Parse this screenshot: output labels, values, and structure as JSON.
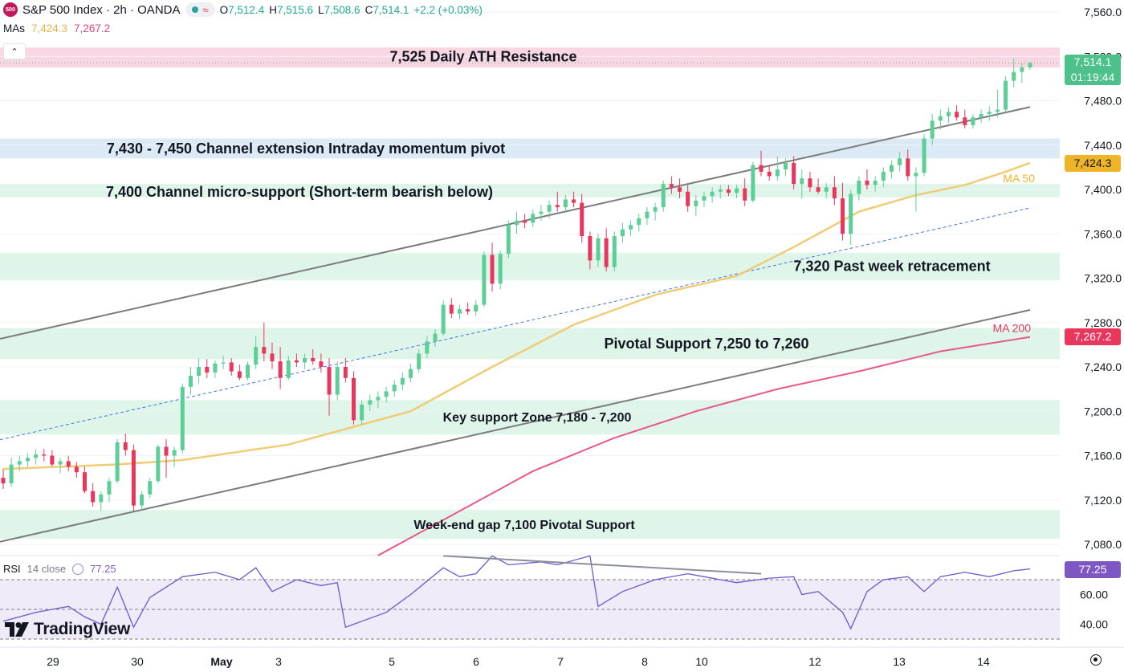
{
  "header": {
    "symbol_badge": "500",
    "title": "S&P 500 Index · 2h · OANDA",
    "ohlc": [
      {
        "key": "O",
        "value": "7,512.4"
      },
      {
        "key": "H",
        "value": "7,515.6"
      },
      {
        "key": "L",
        "value": "7,508.6"
      },
      {
        "key": "C",
        "value": "7,514.1"
      }
    ],
    "change": "+2.2 (+0.03%)",
    "mas_label": "MAs",
    "ma50_value": "7,424.3",
    "ma200_value": "7,267.2",
    "collapse_icon": "chevron-up-icon"
  },
  "price_tags": {
    "last_price": "7,514.1",
    "countdown": "01:19:44",
    "ma50": "7,424.3",
    "ma200": "7,267.2",
    "rsi": "77.25"
  },
  "rsi": {
    "label": "RSI",
    "params": "14 close",
    "value": "77.25"
  },
  "logo": {
    "text": "TradingView",
    "icon": "tradingview-logo-icon"
  },
  "settings_icon": "gear-icon",
  "colors": {
    "up": "#5ccf96",
    "down": "#e8365d",
    "ma50": "#f0cc74",
    "ma200": "#e8598a",
    "channel": "#7c7c7c",
    "midline": "#3f78e0",
    "zone_green": "#dff5e9",
    "zone_red": "#f9d6e1",
    "zone_blue": "#dbeaf4",
    "rsi_line": "#6a5acd",
    "rsi_fill": "#efebf8"
  },
  "chart_data": {
    "type": "candlestick",
    "title": "S&P 500 Index · 2h · OANDA",
    "y_axis": {
      "ticks": [
        "7,560.0",
        "7,520.0",
        "7,480.0",
        "7,440.0",
        "7,400.0",
        "7,360.0",
        "7,320.0",
        "7,280.0",
        "7,240.0",
        "7,200.0",
        "7,160.0",
        "7,120.0",
        "7,080.0"
      ],
      "ylim": [
        7065,
        7565
      ]
    },
    "x_axis": {
      "ticks": [
        "29",
        "30",
        "May",
        "3",
        "5",
        "6",
        "7",
        "8",
        "10",
        "12",
        "13",
        "14"
      ]
    },
    "zones": [
      {
        "label": "7,525 Daily ATH Resistance",
        "from": 7510,
        "to": 7528,
        "color": "red"
      },
      {
        "label": "7,430 - 7,450 Channel extension Intraday momentum pivot",
        "from": 7428,
        "to": 7446,
        "color": "blue"
      },
      {
        "label": "7,400 Channel micro-support (Short-term bearish below)",
        "from": 7393,
        "to": 7405,
        "color": "green"
      },
      {
        "label": "7,320 Past week retracement",
        "from": 7318,
        "to": 7343,
        "color": "green"
      },
      {
        "label": "Pivotal Support 7,250 to 7,260",
        "from": 7247,
        "to": 7275,
        "color": "green"
      },
      {
        "label": "Key support Zone 7,180 - 7,200",
        "from": 7179,
        "to": 7210,
        "color": "green"
      },
      {
        "label": "Week-end gap 7,100 Pivotal Support",
        "from": 7085,
        "to": 7111,
        "color": "green"
      }
    ],
    "channel_lines": [
      {
        "name": "upper",
        "points": [
          [
            0,
            7266
          ],
          [
            130,
            7481
          ]
        ]
      },
      {
        "name": "lower",
        "points": [
          [
            0,
            7083
          ],
          [
            130,
            7298
          ]
        ]
      },
      {
        "name": "mid",
        "points": [
          [
            0,
            7175
          ],
          [
            130,
            7390
          ]
        ]
      }
    ],
    "candles_ohlc": [
      [
        7140,
        7148,
        7130,
        7135
      ],
      [
        7135,
        7158,
        7132,
        7152
      ],
      [
        7152,
        7160,
        7146,
        7155
      ],
      [
        7155,
        7162,
        7150,
        7158
      ],
      [
        7158,
        7166,
        7152,
        7161
      ],
      [
        7161,
        7166,
        7155,
        7160
      ],
      [
        7160,
        7165,
        7150,
        7152
      ],
      [
        7152,
        7158,
        7144,
        7155
      ],
      [
        7155,
        7160,
        7146,
        7150
      ],
      [
        7150,
        7154,
        7140,
        7145
      ],
      [
        7145,
        7150,
        7126,
        7128
      ],
      [
        7128,
        7135,
        7114,
        7118
      ],
      [
        7118,
        7128,
        7110,
        7125
      ],
      [
        7125,
        7140,
        7118,
        7137
      ],
      [
        7137,
        7175,
        7135,
        7172
      ],
      [
        7172,
        7180,
        7160,
        7165
      ],
      [
        7165,
        7170,
        7110,
        7115
      ],
      [
        7115,
        7128,
        7110,
        7125
      ],
      [
        7125,
        7140,
        7122,
        7137
      ],
      [
        7137,
        7170,
        7135,
        7168
      ],
      [
        7168,
        7175,
        7140,
        7160
      ],
      [
        7160,
        7168,
        7150,
        7165
      ],
      [
        7165,
        7225,
        7162,
        7222
      ],
      [
        7222,
        7240,
        7215,
        7232
      ],
      [
        7232,
        7248,
        7225,
        7240
      ],
      [
        7240,
        7247,
        7230,
        7235
      ],
      [
        7235,
        7246,
        7230,
        7243
      ],
      [
        7243,
        7250,
        7238,
        7244
      ],
      [
        7244,
        7248,
        7232,
        7236
      ],
      [
        7236,
        7242,
        7228,
        7230
      ],
      [
        7230,
        7245,
        7228,
        7242
      ],
      [
        7242,
        7268,
        7238,
        7258
      ],
      [
        7258,
        7280,
        7245,
        7252
      ],
      [
        7252,
        7262,
        7238,
        7245
      ],
      [
        7245,
        7258,
        7220,
        7230
      ],
      [
        7230,
        7250,
        7228,
        7246
      ],
      [
        7246,
        7252,
        7240,
        7244
      ],
      [
        7244,
        7252,
        7238,
        7248
      ],
      [
        7248,
        7256,
        7242,
        7245
      ],
      [
        7245,
        7252,
        7235,
        7240
      ],
      [
        7240,
        7248,
        7196,
        7215
      ],
      [
        7215,
        7245,
        7210,
        7240
      ],
      [
        7240,
        7248,
        7226,
        7230
      ],
      [
        7230,
        7236,
        7188,
        7192
      ],
      [
        7192,
        7210,
        7188,
        7206
      ],
      [
        7206,
        7215,
        7200,
        7210
      ],
      [
        7210,
        7218,
        7203,
        7213
      ],
      [
        7213,
        7222,
        7208,
        7218
      ],
      [
        7218,
        7228,
        7213,
        7224
      ],
      [
        7224,
        7235,
        7219,
        7230
      ],
      [
        7230,
        7243,
        7226,
        7238
      ],
      [
        7238,
        7256,
        7235,
        7252
      ],
      [
        7252,
        7268,
        7248,
        7263
      ],
      [
        7263,
        7274,
        7258,
        7270
      ],
      [
        7270,
        7300,
        7268,
        7296
      ],
      [
        7296,
        7302,
        7284,
        7288
      ],
      [
        7288,
        7296,
        7283,
        7292
      ],
      [
        7292,
        7298,
        7287,
        7290
      ],
      [
        7290,
        7300,
        7286,
        7296
      ],
      [
        7296,
        7344,
        7294,
        7341
      ],
      [
        7341,
        7352,
        7308,
        7315
      ],
      [
        7315,
        7345,
        7310,
        7342
      ],
      [
        7342,
        7372,
        7338,
        7368
      ],
      [
        7368,
        7380,
        7360,
        7372
      ],
      [
        7372,
        7378,
        7365,
        7370
      ],
      [
        7370,
        7382,
        7366,
        7378
      ],
      [
        7378,
        7386,
        7372,
        7380
      ],
      [
        7380,
        7390,
        7374,
        7386
      ],
      [
        7386,
        7398,
        7380,
        7384
      ],
      [
        7384,
        7395,
        7380,
        7391
      ],
      [
        7391,
        7398,
        7384,
        7388
      ],
      [
        7388,
        7396,
        7352,
        7358
      ],
      [
        7358,
        7362,
        7328,
        7336
      ],
      [
        7336,
        7360,
        7330,
        7356
      ],
      [
        7356,
        7365,
        7326,
        7330
      ],
      [
        7330,
        7362,
        7326,
        7358
      ],
      [
        7358,
        7370,
        7352,
        7364
      ],
      [
        7364,
        7372,
        7358,
        7368
      ],
      [
        7368,
        7378,
        7362,
        7374
      ],
      [
        7374,
        7384,
        7368,
        7380
      ],
      [
        7380,
        7388,
        7372,
        7384
      ],
      [
        7384,
        7408,
        7380,
        7405
      ],
      [
        7405,
        7412,
        7396,
        7402
      ],
      [
        7402,
        7410,
        7392,
        7398
      ],
      [
        7398,
        7404,
        7380,
        7385
      ],
      [
        7385,
        7395,
        7376,
        7390
      ],
      [
        7390,
        7398,
        7384,
        7394
      ],
      [
        7394,
        7402,
        7388,
        7398
      ],
      [
        7398,
        7404,
        7392,
        7400
      ],
      [
        7400,
        7404,
        7394,
        7397
      ],
      [
        7397,
        7404,
        7392,
        7401
      ],
      [
        7401,
        7410,
        7385,
        7390
      ],
      [
        7390,
        7425,
        7388,
        7422
      ],
      [
        7422,
        7435,
        7412,
        7416
      ],
      [
        7416,
        7422,
        7408,
        7412
      ],
      [
        7412,
        7430,
        7408,
        7418
      ],
      [
        7418,
        7428,
        7412,
        7424
      ],
      [
        7424,
        7430,
        7400,
        7405
      ],
      [
        7405,
        7418,
        7392,
        7410
      ],
      [
        7410,
        7416,
        7398,
        7402
      ],
      [
        7402,
        7410,
        7396,
        7398
      ],
      [
        7398,
        7406,
        7392,
        7402
      ],
      [
        7402,
        7412,
        7386,
        7392
      ],
      [
        7392,
        7406,
        7354,
        7360
      ],
      [
        7360,
        7400,
        7350,
        7396
      ],
      [
        7396,
        7412,
        7390,
        7408
      ],
      [
        7408,
        7418,
        7400,
        7404
      ],
      [
        7404,
        7412,
        7398,
        7408
      ],
      [
        7408,
        7420,
        7402,
        7416
      ],
      [
        7416,
        7426,
        7410,
        7422
      ],
      [
        7422,
        7434,
        7416,
        7428
      ],
      [
        7428,
        7436,
        7408,
        7412
      ],
      [
        7412,
        7420,
        7380,
        7415
      ],
      [
        7415,
        7450,
        7412,
        7446
      ],
      [
        7446,
        7468,
        7440,
        7462
      ],
      [
        7462,
        7472,
        7454,
        7466
      ],
      [
        7466,
        7474,
        7460,
        7470
      ],
      [
        7470,
        7476,
        7462,
        7465
      ],
      [
        7465,
        7472,
        7455,
        7458
      ],
      [
        7458,
        7468,
        7455,
        7465
      ],
      [
        7465,
        7472,
        7460,
        7468
      ],
      [
        7468,
        7475,
        7462,
        7470
      ],
      [
        7470,
        7490,
        7465,
        7472
      ],
      [
        7472,
        7502,
        7470,
        7498
      ],
      [
        7498,
        7518,
        7492,
        7506
      ],
      [
        7506,
        7514,
        7496,
        7510
      ],
      [
        7510,
        7515,
        7508,
        7514
      ]
    ],
    "ma50_points": [
      [
        0,
        7148
      ],
      [
        14,
        7152
      ],
      [
        22,
        7156
      ],
      [
        35,
        7170
      ],
      [
        50,
        7200
      ],
      [
        60,
        7240
      ],
      [
        70,
        7278
      ],
      [
        80,
        7305
      ],
      [
        90,
        7322
      ],
      [
        97,
        7348
      ],
      [
        105,
        7380
      ],
      [
        112,
        7395
      ],
      [
        118,
        7404
      ],
      [
        123,
        7416
      ],
      [
        126,
        7424
      ]
    ],
    "ma200_points": [
      [
        46,
        7070
      ],
      [
        55,
        7106
      ],
      [
        65,
        7146
      ],
      [
        75,
        7176
      ],
      [
        85,
        7200
      ],
      [
        95,
        7220
      ],
      [
        105,
        7236
      ],
      [
        115,
        7254
      ],
      [
        126,
        7267
      ]
    ],
    "rsi_axis": {
      "ticks": [
        "60.00",
        "40.00"
      ],
      "ylim": [
        30,
        90
      ],
      "levels": [
        70,
        50,
        30
      ]
    },
    "rsi_points": [
      [
        0,
        42
      ],
      [
        4,
        48
      ],
      [
        8,
        52
      ],
      [
        10,
        45
      ],
      [
        12,
        40
      ],
      [
        14,
        65
      ],
      [
        16,
        38
      ],
      [
        18,
        58
      ],
      [
        22,
        72
      ],
      [
        26,
        75
      ],
      [
        29,
        70
      ],
      [
        31,
        78
      ],
      [
        33,
        62
      ],
      [
        36,
        70
      ],
      [
        39,
        66
      ],
      [
        41,
        68
      ],
      [
        42,
        38
      ],
      [
        44,
        42
      ],
      [
        47,
        48
      ],
      [
        50,
        60
      ],
      [
        54,
        78
      ],
      [
        56,
        72
      ],
      [
        58,
        74
      ],
      [
        60,
        86
      ],
      [
        62,
        80
      ],
      [
        66,
        82
      ],
      [
        68,
        80
      ],
      [
        72,
        86
      ],
      [
        73,
        52
      ],
      [
        76,
        62
      ],
      [
        80,
        70
      ],
      [
        84,
        74
      ],
      [
        86,
        72
      ],
      [
        90,
        68
      ],
      [
        94,
        71
      ],
      [
        97,
        72
      ],
      [
        98,
        60
      ],
      [
        100,
        62
      ],
      [
        103,
        48
      ],
      [
        104,
        37
      ],
      [
        106,
        62
      ],
      [
        108,
        70
      ],
      [
        111,
        72
      ],
      [
        113,
        62
      ],
      [
        115,
        72
      ],
      [
        118,
        75
      ],
      [
        121,
        72
      ],
      [
        124,
        76
      ],
      [
        126,
        77.25
      ]
    ],
    "rsi_trendline": [
      [
        54,
        86
      ],
      [
        93,
        74
      ]
    ]
  }
}
